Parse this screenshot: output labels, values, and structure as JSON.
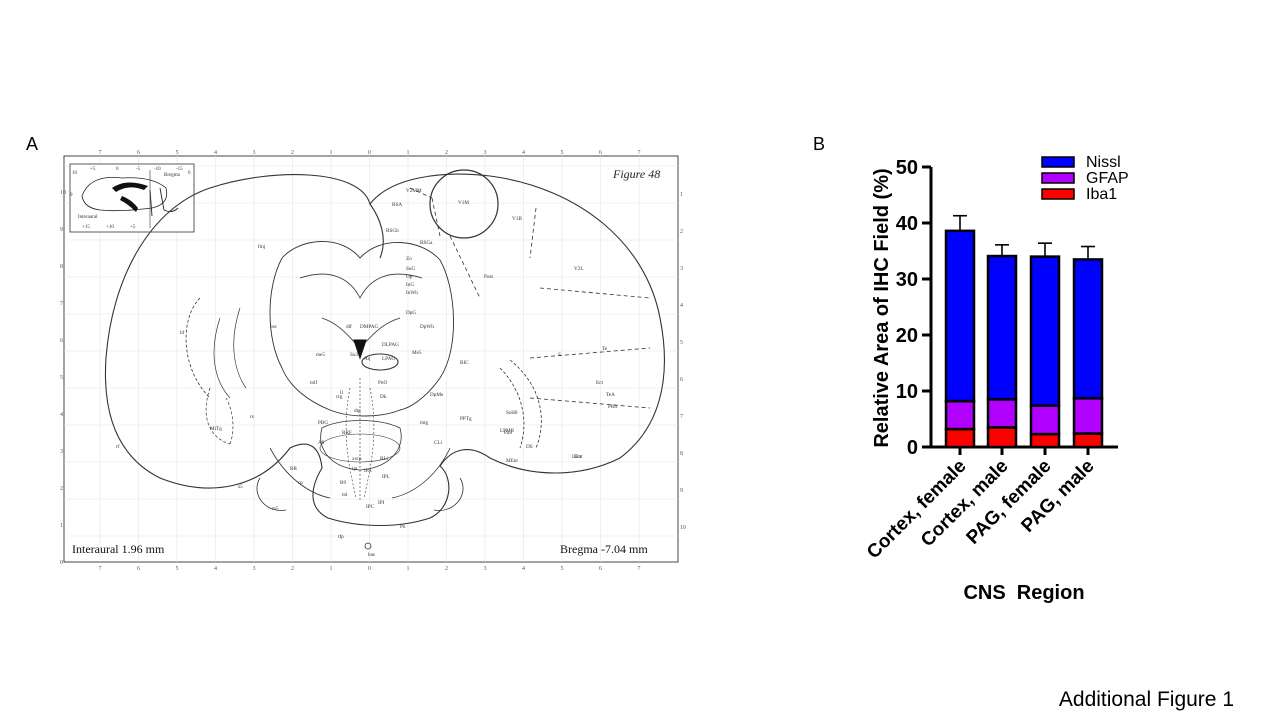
{
  "panels": {
    "a_letter": "A",
    "b_letter": "B"
  },
  "atlas": {
    "figure_label": "Figure 48",
    "interaural": "Interaural 1.96 mm",
    "bregma": "Bregma -7.04 mm",
    "top_ticks": [
      "7",
      "6",
      "5",
      "4",
      "3",
      "2",
      "1",
      "0",
      "1",
      "2",
      "3",
      "4",
      "5",
      "6",
      "7"
    ],
    "bottom_ticks": [
      "7",
      "6",
      "5",
      "4",
      "3",
      "2",
      "1",
      "0",
      "1",
      "2",
      "3",
      "4",
      "5",
      "6",
      "7"
    ],
    "left_ticks": [
      "10",
      "9",
      "8",
      "7",
      "6",
      "5",
      "4",
      "3",
      "2",
      "1",
      "0"
    ],
    "right_ticks": [
      "1",
      "2",
      "3",
      "4",
      "5",
      "6",
      "7",
      "8",
      "9",
      "10"
    ],
    "inset_labels": [
      "10",
      "+5",
      "0",
      "-5",
      "-10",
      "-15",
      "Bregma",
      "0",
      "Interaural",
      "+15",
      "+10",
      "+5",
      "9"
    ],
    "region_labels": [
      "V2MM",
      "V1M",
      "RSA",
      "V1B",
      "RSGb",
      "RSGa",
      "V2L",
      "fmj",
      "Zo",
      "SuG",
      "Op",
      "InG",
      "InWh",
      "Post",
      "DpG",
      "DpWh",
      "DMPAG",
      "DLPAG",
      "LPAG",
      "Aq",
      "Me5",
      "dlf",
      "hf",
      "bsc",
      "me5",
      "Su3C",
      "ll",
      "S",
      "Te",
      "Ect",
      "TeA",
      "PRh",
      "Ent",
      "BIC",
      "DpMe",
      "Dk",
      "PnO",
      "mlf",
      "ctg",
      "dtg",
      "rs",
      "MiTg",
      "PBG",
      "A8",
      "mtg",
      "RRF",
      "CLi",
      "PPTg",
      "SubB",
      "PaS",
      "DS",
      "MEnt",
      "LEnt",
      "xscp",
      "ipt",
      "RLi",
      "IPA",
      "IPL",
      "RR",
      "B9",
      "ml",
      "IPC",
      "IPI",
      "cp",
      "s5",
      "Pn",
      "tfp",
      "bas",
      "m5",
      "rf",
      "LPMR"
    ]
  },
  "chart_data": {
    "type": "bar",
    "stacked": true,
    "categories": [
      "Cortex, female",
      "Cortex, male",
      "PAG, female",
      "PAG, male"
    ],
    "series": [
      {
        "name": "Iba1",
        "color": "#ff0000",
        "values": [
          3.2,
          3.5,
          2.3,
          2.4
        ],
        "errors": [
          0.6,
          0.5,
          0.6,
          0.5
        ]
      },
      {
        "name": "GFAP",
        "color": "#b000ff",
        "values": [
          5.0,
          5.0,
          5.1,
          6.3
        ],
        "errors": [
          0.8,
          0.9,
          0.8,
          0.8
        ]
      },
      {
        "name": "Nissl",
        "color": "#0000ff",
        "values": [
          30.4,
          25.6,
          26.6,
          24.8
        ],
        "errors": [
          2.7,
          2.0,
          2.4,
          2.3
        ]
      }
    ],
    "legend_order": [
      "Nissl",
      "GFAP",
      "Iba1"
    ],
    "legend_position": "top-right",
    "ylabel": "Relative Area of IHC Field (%)",
    "xlabel": "CNS  Region",
    "ylim": [
      0,
      50
    ],
    "yticks": [
      "0",
      "10",
      "20",
      "30",
      "40",
      "50"
    ],
    "grid": false
  },
  "caption": "Additional Figure 1"
}
